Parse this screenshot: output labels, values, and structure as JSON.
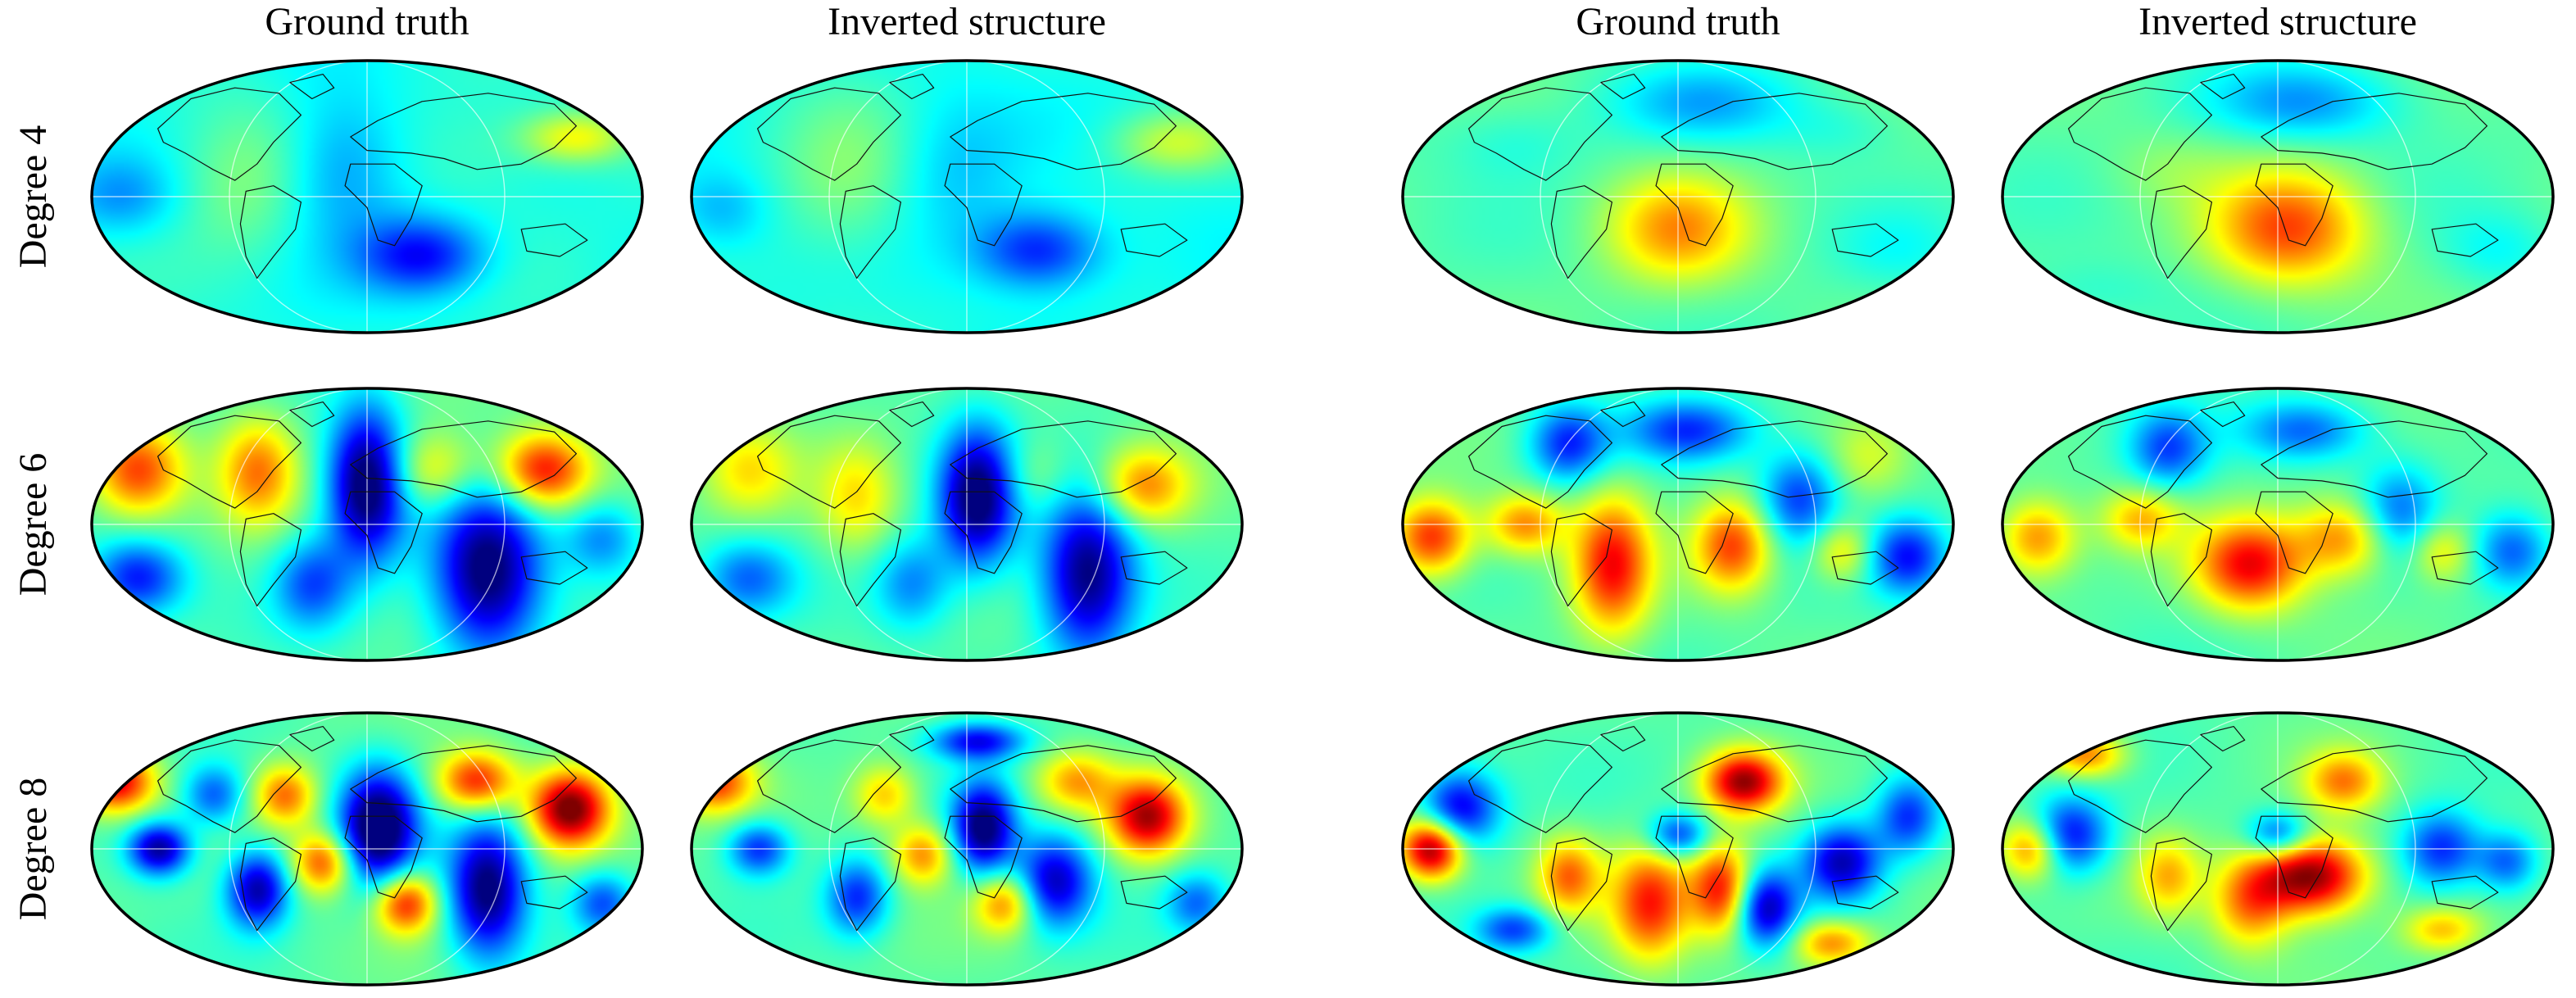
{
  "column_titles": [
    "Ground truth",
    "Inverted structure",
    "Ground truth",
    "Inverted structure"
  ],
  "row_titles": [
    "Degree 4",
    "Degree 6",
    "Degree 8"
  ],
  "colormap": [
    "#00007f",
    "#0000ff",
    "#007fff",
    "#00ffff",
    "#7fff7f",
    "#ffff00",
    "#ff7f00",
    "#ff0000",
    "#7f0000"
  ],
  "outline_color": "#000000",
  "graticule_color": "#ffffff",
  "coastline_color": "#111111",
  "maps": [
    [
      {
        "bg": 0.4,
        "blobs": [
          [
            0.6,
            0.72,
            0.08,
            0.1,
            -0.28
          ],
          [
            0.88,
            0.28,
            0.07,
            0.07,
            0.22
          ],
          [
            0.28,
            0.45,
            0.09,
            0.22,
            0.1
          ],
          [
            0.45,
            0.4,
            0.08,
            0.2,
            -0.14
          ],
          [
            0.05,
            0.5,
            0.07,
            0.1,
            -0.12
          ],
          [
            0.7,
            0.35,
            0.1,
            0.15,
            0.05
          ]
        ]
      },
      {
        "bg": 0.4,
        "blobs": [
          [
            0.63,
            0.7,
            0.08,
            0.1,
            -0.26
          ],
          [
            0.88,
            0.3,
            0.08,
            0.08,
            0.16
          ],
          [
            0.28,
            0.45,
            0.09,
            0.22,
            0.1
          ],
          [
            0.48,
            0.4,
            0.08,
            0.2,
            -0.08
          ],
          [
            0.05,
            0.55,
            0.06,
            0.1,
            -0.1
          ]
        ]
      },
      {
        "bg": 0.46,
        "blobs": [
          [
            0.5,
            0.62,
            0.09,
            0.14,
            0.26
          ],
          [
            0.55,
            0.15,
            0.12,
            0.1,
            -0.15
          ],
          [
            0.2,
            0.3,
            0.09,
            0.1,
            -0.06
          ],
          [
            0.8,
            0.25,
            0.08,
            0.08,
            -0.05
          ],
          [
            0.9,
            0.7,
            0.08,
            0.1,
            -0.06
          ]
        ]
      },
      {
        "bg": 0.46,
        "blobs": [
          [
            0.52,
            0.62,
            0.1,
            0.15,
            0.34
          ],
          [
            0.55,
            0.15,
            0.12,
            0.1,
            -0.18
          ],
          [
            0.3,
            0.4,
            0.08,
            0.1,
            0.05
          ],
          [
            0.9,
            0.7,
            0.07,
            0.1,
            -0.08
          ],
          [
            0.15,
            0.85,
            0.1,
            0.08,
            -0.05
          ]
        ]
      }
    ],
    [
      {
        "bg": 0.46,
        "blobs": [
          [
            0.5,
            0.35,
            0.05,
            0.2,
            -0.52
          ],
          [
            0.72,
            0.68,
            0.07,
            0.22,
            -0.5
          ],
          [
            0.82,
            0.3,
            0.06,
            0.1,
            0.42
          ],
          [
            0.08,
            0.3,
            0.06,
            0.12,
            0.36
          ],
          [
            0.3,
            0.3,
            0.05,
            0.14,
            0.28
          ],
          [
            0.62,
            0.3,
            0.06,
            0.1,
            0.2
          ],
          [
            0.08,
            0.7,
            0.06,
            0.1,
            -0.32
          ],
          [
            0.4,
            0.72,
            0.05,
            0.12,
            -0.25
          ],
          [
            0.93,
            0.55,
            0.05,
            0.1,
            -0.2
          ]
        ]
      },
      {
        "bg": 0.46,
        "blobs": [
          [
            0.52,
            0.4,
            0.05,
            0.18,
            -0.5
          ],
          [
            0.72,
            0.68,
            0.06,
            0.22,
            -0.46
          ],
          [
            0.82,
            0.36,
            0.06,
            0.1,
            0.28
          ],
          [
            0.1,
            0.3,
            0.06,
            0.12,
            0.18
          ],
          [
            0.3,
            0.4,
            0.05,
            0.14,
            0.18
          ],
          [
            0.62,
            0.32,
            0.05,
            0.1,
            0.1
          ],
          [
            0.1,
            0.7,
            0.06,
            0.1,
            -0.22
          ],
          [
            0.4,
            0.72,
            0.05,
            0.12,
            -0.2
          ]
        ]
      },
      {
        "bg": 0.46,
        "blobs": [
          [
            0.38,
            0.65,
            0.05,
            0.18,
            0.4
          ],
          [
            0.6,
            0.58,
            0.05,
            0.12,
            0.35
          ],
          [
            0.05,
            0.55,
            0.05,
            0.1,
            0.38
          ],
          [
            0.22,
            0.5,
            0.05,
            0.08,
            0.28
          ],
          [
            0.3,
            0.2,
            0.05,
            0.1,
            -0.3
          ],
          [
            0.52,
            0.15,
            0.08,
            0.08,
            -0.28
          ],
          [
            0.72,
            0.4,
            0.05,
            0.12,
            -0.28
          ],
          [
            0.92,
            0.62,
            0.05,
            0.1,
            -0.32
          ],
          [
            0.85,
            0.25,
            0.05,
            0.1,
            0.1
          ],
          [
            0.8,
            0.6,
            0.04,
            0.08,
            0.2
          ]
        ]
      },
      {
        "bg": 0.46,
        "blobs": [
          [
            0.45,
            0.65,
            0.07,
            0.12,
            0.42
          ],
          [
            0.62,
            0.55,
            0.06,
            0.1,
            0.28
          ],
          [
            0.06,
            0.55,
            0.05,
            0.1,
            0.28
          ],
          [
            0.25,
            0.48,
            0.05,
            0.08,
            0.22
          ],
          [
            0.3,
            0.22,
            0.05,
            0.1,
            -0.26
          ],
          [
            0.55,
            0.15,
            0.08,
            0.08,
            -0.24
          ],
          [
            0.72,
            0.45,
            0.05,
            0.12,
            -0.22
          ],
          [
            0.93,
            0.6,
            0.05,
            0.1,
            -0.25
          ],
          [
            0.8,
            0.6,
            0.04,
            0.08,
            0.18
          ]
        ]
      }
    ],
    [
      {
        "bg": 0.46,
        "blobs": [
          [
            0.52,
            0.42,
            0.05,
            0.15,
            -0.55
          ],
          [
            0.12,
            0.5,
            0.04,
            0.07,
            -0.45
          ],
          [
            0.04,
            0.25,
            0.05,
            0.08,
            0.45
          ],
          [
            0.87,
            0.35,
            0.05,
            0.1,
            0.55
          ],
          [
            0.7,
            0.25,
            0.05,
            0.08,
            0.4
          ],
          [
            0.3,
            0.65,
            0.04,
            0.1,
            -0.42
          ],
          [
            0.72,
            0.65,
            0.05,
            0.18,
            -0.48
          ],
          [
            0.42,
            0.55,
            0.04,
            0.08,
            0.35
          ],
          [
            0.57,
            0.7,
            0.04,
            0.08,
            0.4
          ],
          [
            0.93,
            0.7,
            0.04,
            0.08,
            -0.25
          ],
          [
            0.35,
            0.3,
            0.04,
            0.08,
            0.3
          ],
          [
            0.22,
            0.3,
            0.04,
            0.08,
            -0.25
          ]
        ]
      },
      {
        "bg": 0.46,
        "blobs": [
          [
            0.53,
            0.42,
            0.04,
            0.12,
            -0.48
          ],
          [
            0.12,
            0.5,
            0.04,
            0.07,
            -0.3
          ],
          [
            0.04,
            0.25,
            0.05,
            0.08,
            0.35
          ],
          [
            0.83,
            0.38,
            0.05,
            0.1,
            0.48
          ],
          [
            0.7,
            0.25,
            0.05,
            0.08,
            0.25
          ],
          [
            0.3,
            0.68,
            0.04,
            0.1,
            -0.3
          ],
          [
            0.66,
            0.62,
            0.05,
            0.12,
            -0.4
          ],
          [
            0.42,
            0.52,
            0.04,
            0.08,
            0.28
          ],
          [
            0.57,
            0.7,
            0.04,
            0.08,
            0.3
          ],
          [
            0.92,
            0.7,
            0.04,
            0.08,
            -0.22
          ],
          [
            0.35,
            0.3,
            0.04,
            0.08,
            0.22
          ],
          [
            0.52,
            0.1,
            0.06,
            0.05,
            -0.35
          ]
        ]
      },
      {
        "bg": 0.46,
        "blobs": [
          [
            0.05,
            0.5,
            0.04,
            0.08,
            0.55
          ],
          [
            0.1,
            0.35,
            0.05,
            0.1,
            -0.38
          ],
          [
            0.62,
            0.25,
            0.05,
            0.08,
            0.5
          ],
          [
            0.45,
            0.7,
            0.05,
            0.15,
            0.38
          ],
          [
            0.58,
            0.65,
            0.04,
            0.12,
            0.42
          ],
          [
            0.66,
            0.72,
            0.04,
            0.1,
            -0.4
          ],
          [
            0.8,
            0.55,
            0.05,
            0.1,
            -0.4
          ],
          [
            0.92,
            0.38,
            0.04,
            0.1,
            -0.28
          ],
          [
            0.3,
            0.6,
            0.04,
            0.1,
            0.3
          ],
          [
            0.5,
            0.45,
            0.04,
            0.06,
            -0.3
          ],
          [
            0.2,
            0.8,
            0.05,
            0.06,
            -0.28
          ],
          [
            0.78,
            0.85,
            0.05,
            0.06,
            0.28
          ]
        ]
      },
      {
        "bg": 0.46,
        "blobs": [
          [
            0.05,
            0.5,
            0.04,
            0.08,
            0.32
          ],
          [
            0.12,
            0.45,
            0.05,
            0.1,
            -0.35
          ],
          [
            0.56,
            0.6,
            0.07,
            0.1,
            0.55
          ],
          [
            0.62,
            0.25,
            0.05,
            0.08,
            0.28
          ],
          [
            0.45,
            0.7,
            0.05,
            0.12,
            0.28
          ],
          [
            0.8,
            0.5,
            0.05,
            0.1,
            -0.3
          ],
          [
            0.92,
            0.55,
            0.04,
            0.08,
            -0.25
          ],
          [
            0.3,
            0.6,
            0.04,
            0.1,
            0.22
          ],
          [
            0.5,
            0.45,
            0.04,
            0.06,
            -0.28
          ],
          [
            0.8,
            0.8,
            0.05,
            0.06,
            0.22
          ],
          [
            0.15,
            0.15,
            0.05,
            0.06,
            0.3
          ]
        ]
      }
    ]
  ]
}
